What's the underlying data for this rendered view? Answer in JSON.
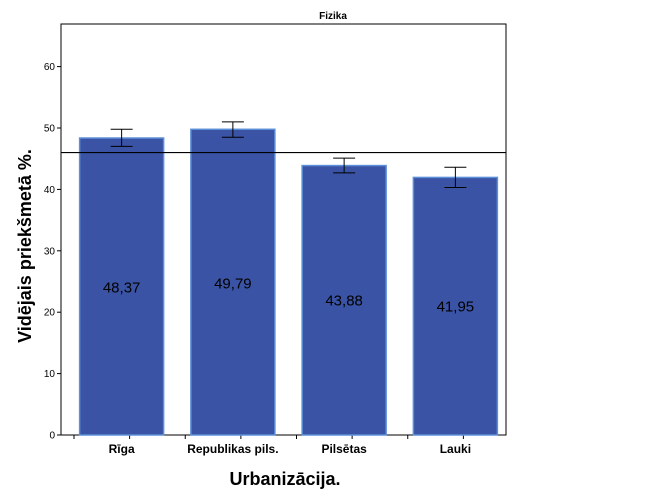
{
  "chart_data": {
    "type": "bar",
    "title": "Fizika",
    "xlabel": "Urbanizācija.",
    "ylabel": "Vidējais priekšmetā %.",
    "categories": [
      "Rīga",
      "Republikas pils.",
      "Pilsētas",
      "Lauki"
    ],
    "values": [
      48.37,
      49.79,
      43.88,
      41.95
    ],
    "value_labels": [
      "48,37",
      "49,79",
      "43,88",
      "41,95"
    ],
    "error_bars": [
      {
        "low": 47.0,
        "high": 49.8
      },
      {
        "low": 48.5,
        "high": 51.0
      },
      {
        "low": 42.7,
        "high": 45.1
      },
      {
        "low": 40.3,
        "high": 43.6
      }
    ],
    "reference_line": 46.0,
    "ylim": [
      0,
      70
    ],
    "yticks": [
      0,
      10,
      20,
      30,
      40,
      50,
      60
    ],
    "grid": false,
    "legend": "none",
    "bar_color": "#3A53A4",
    "bar_edge_color": "#5C8FD8"
  }
}
